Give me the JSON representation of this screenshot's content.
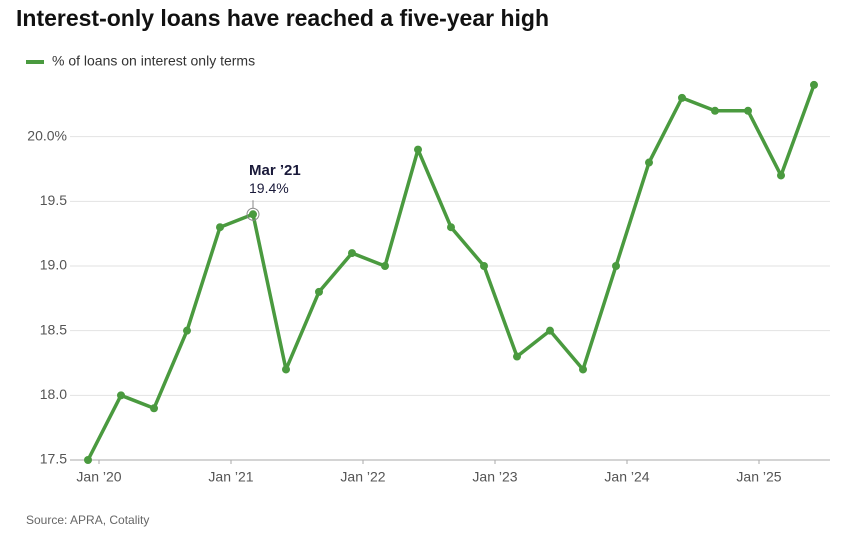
{
  "chart_data": {
    "type": "line",
    "title": "Interest-only loans have reached a five-year high",
    "x": [
      "2019-12",
      "2020-03",
      "2020-06",
      "2020-09",
      "2020-12",
      "2021-03",
      "2021-06",
      "2021-09",
      "2021-12",
      "2022-03",
      "2022-06",
      "2022-09",
      "2022-12",
      "2023-03",
      "2023-06",
      "2023-09",
      "2023-12",
      "2024-03",
      "2024-06",
      "2024-09",
      "2024-12",
      "2025-03",
      "2025-06"
    ],
    "series": [
      {
        "name": "% of loans on interest only terms",
        "color": "#4a9a3f",
        "values": [
          17.5,
          18.0,
          17.9,
          18.5,
          19.3,
          19.4,
          18.2,
          18.8,
          19.1,
          19.0,
          19.9,
          19.3,
          19.0,
          18.3,
          18.5,
          18.2,
          19.0,
          19.8,
          20.3,
          20.2,
          20.2,
          19.7,
          20.4
        ]
      }
    ],
    "xlim": [
      "2019-12",
      "2025-06"
    ],
    "xticks": [
      {
        "value": "2020-01",
        "label": "Jan ’20"
      },
      {
        "value": "2021-01",
        "label": "Jan ’21"
      },
      {
        "value": "2022-01",
        "label": "Jan ’22"
      },
      {
        "value": "2023-01",
        "label": "Jan ’23"
      },
      {
        "value": "2024-01",
        "label": "Jan ’24"
      },
      {
        "value": "2025-01",
        "label": "Jan ’25"
      }
    ],
    "ylim": [
      17.5,
      20.5
    ],
    "yticks": [
      17.5,
      {
        "value": 18,
        "label": "18.0"
      },
      18.5,
      {
        "value": 19,
        "label": "19.0"
      },
      19.5,
      {
        "value": 20,
        "label": "20.0%"
      }
    ],
    "grid": true,
    "legend": "top-left",
    "annotations": [
      {
        "x": "2021-03",
        "title": "Mar ’21",
        "value": 19.4,
        "value_label": "19.4%"
      }
    ],
    "source": "Source: APRA, Cotality"
  }
}
